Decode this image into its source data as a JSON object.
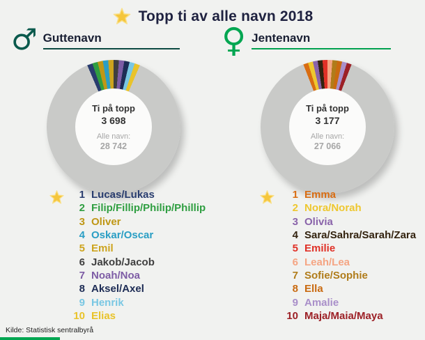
{
  "title": "Topp ti av alle navn 2018",
  "source": "Kilde: Statistisk sentralbyrå",
  "colors": {
    "background": "#f1f2f0",
    "title_text": "#1f2240",
    "male_symbol": "#0a594c",
    "female_symbol": "#00a651",
    "boys_rule": "#0d4a42",
    "girls_rule": "#00a14f",
    "donut_rest": "#c9cac8",
    "donut_hole": "#fbfbfa",
    "star": "#f5c63c",
    "center_text": "#333333",
    "muted_text": "#a6a6a6"
  },
  "boys": {
    "heading": "Guttenavn",
    "symbol": "♂",
    "names": [
      {
        "rank": 1,
        "name": "Lucas/Lukas",
        "color": "#283c6e"
      },
      {
        "rank": 2,
        "name": "Filip/Fillip/Philip/Phillip",
        "color": "#2f9e41"
      },
      {
        "rank": 3,
        "name": "Oliver",
        "color": "#bf9715"
      },
      {
        "rank": 4,
        "name": "Oskar/Oscar",
        "color": "#2a9ec4"
      },
      {
        "rank": 5,
        "name": "Emil",
        "color": "#cda41e"
      },
      {
        "rank": 6,
        "name": "Jakob/Jacob",
        "color": "#3f3f3f"
      },
      {
        "rank": 7,
        "name": "Noah/Noa",
        "color": "#7d5ca5"
      },
      {
        "rank": 8,
        "name": "Aksel/Axel",
        "color": "#1d2c55"
      },
      {
        "rank": 9,
        "name": "Henrik",
        "color": "#79c7e3"
      },
      {
        "rank": 10,
        "name": "Elias",
        "color": "#e9c32a"
      }
    ]
  },
  "girls": {
    "heading": "Jentenavn",
    "symbol": "♀",
    "names": [
      {
        "rank": 1,
        "name": "Emma",
        "color": "#d96d12"
      },
      {
        "rank": 2,
        "name": "Nora/Norah",
        "color": "#eec72f"
      },
      {
        "rank": 3,
        "name": "Olivia",
        "color": "#8a64aa"
      },
      {
        "rank": 4,
        "name": "Sara/Sahra/Sarah/Zara",
        "color": "#33230f"
      },
      {
        "rank": 5,
        "name": "Emilie",
        "color": "#e03127"
      },
      {
        "rank": 6,
        "name": "Leah/Lea",
        "color": "#f5a583"
      },
      {
        "rank": 7,
        "name": "Sofie/Sophie",
        "color": "#b07c1a"
      },
      {
        "rank": 8,
        "name": "Ella",
        "color": "#c96a10"
      },
      {
        "rank": 9,
        "name": "Amalie",
        "color": "#a98fc9"
      },
      {
        "rank": 10,
        "name": "Maja/Maia/Maya",
        "color": "#9c2026"
      }
    ]
  },
  "chart_data": [
    {
      "type": "donut",
      "group": "Guttenavn",
      "center_label": "Ti på topp",
      "center_value": "3 698",
      "sub_label": "Alle navn:",
      "sub_value": "28 742",
      "top_count": 3698,
      "total_count": 28742,
      "segment_colors": [
        "#283c6e",
        "#2f9e41",
        "#bf9715",
        "#2a9ec4",
        "#cda41e",
        "#3f3f3f",
        "#7d5ca5",
        "#1d2c55",
        "#79c7e3",
        "#e9c32a"
      ],
      "rest_color": "#c9cac8",
      "legend_position": "below",
      "segments_centered_at": "top"
    },
    {
      "type": "donut",
      "group": "Jentenavn",
      "center_label": "Ti på topp",
      "center_value": "3 177",
      "sub_label": "Alle navn:",
      "sub_value": "27 066",
      "top_count": 3177,
      "total_count": 27066,
      "segment_colors": [
        "#d96d12",
        "#eec72f",
        "#8a64aa",
        "#33230f",
        "#e03127",
        "#f5a583",
        "#b07c1a",
        "#c96a10",
        "#a98fc9",
        "#9c2026"
      ],
      "rest_color": "#c9cac8",
      "legend_position": "below",
      "segments_centered_at": "top"
    }
  ]
}
